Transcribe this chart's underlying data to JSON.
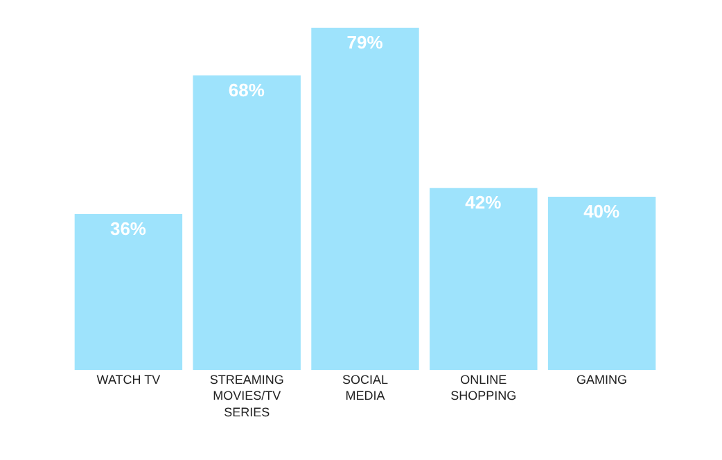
{
  "chart_data": {
    "type": "bar",
    "categories": [
      "WATCH TV",
      "STREAMING MOVIES/TV SERIES",
      "SOCIAL MEDIA",
      "ONLINE SHOPPING",
      "GAMING"
    ],
    "values": [
      36,
      68,
      79,
      42,
      40
    ],
    "value_labels": [
      "36%",
      "68%",
      "79%",
      "42%",
      "40%"
    ],
    "color": "#9ee3fc"
  }
}
